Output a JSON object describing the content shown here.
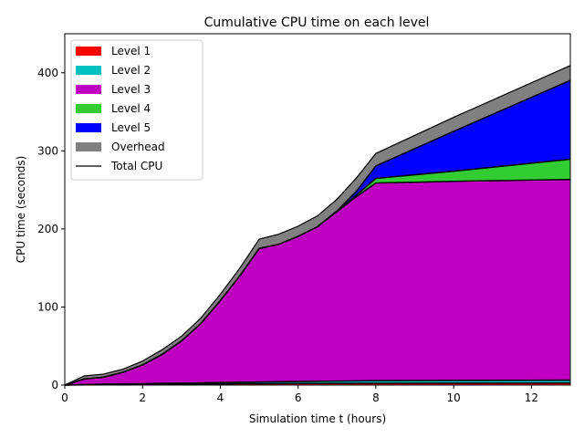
{
  "chart_data": {
    "type": "area",
    "title": "Cumulative CPU time on each level",
    "xlabel": "Simulation time t (hours)",
    "ylabel": "CPU time (seconds)",
    "xlim": [
      0,
      13
    ],
    "ylim": [
      0,
      450
    ],
    "x_ticks": [
      0,
      2,
      4,
      6,
      8,
      10,
      12
    ],
    "y_ticks": [
      0,
      100,
      200,
      300,
      400
    ],
    "grid": false,
    "legend_position": "top-left",
    "x": [
      0,
      0.5,
      1,
      1.5,
      2,
      2.5,
      3,
      3.5,
      4,
      4.5,
      5,
      5.5,
      6,
      6.5,
      7,
      7.5,
      8,
      10,
      13
    ],
    "series": [
      {
        "name": "Level 1",
        "color": "#ff0000",
        "values": [
          0,
          0.3,
          0.5,
          0.6,
          0.8,
          1.0,
          1.1,
          1.3,
          1.5,
          1.7,
          1.8,
          1.9,
          2.0,
          2.1,
          2.2,
          2.3,
          2.4,
          2.5,
          2.7
        ]
      },
      {
        "name": "Level 2",
        "color": "#00c0c0",
        "values": [
          0,
          0.4,
          0.6,
          0.8,
          1.0,
          1.2,
          1.4,
          1.6,
          1.8,
          2.0,
          2.2,
          2.3,
          2.5,
          2.7,
          2.9,
          3.1,
          3.3,
          3.5,
          3.6
        ]
      },
      {
        "name": "Level 3",
        "color": "#c000c0",
        "values": [
          0,
          7,
          9,
          15,
          24,
          37,
          54,
          76,
          105,
          136,
          171,
          176,
          186,
          198,
          217,
          236,
          253,
          255,
          257
        ]
      },
      {
        "name": "Level 4",
        "color": "#33cc33",
        "values": [
          0,
          0,
          0,
          0,
          0,
          0,
          0,
          0,
          0,
          0,
          0,
          0,
          0,
          0,
          1,
          2,
          6,
          13,
          26
        ]
      },
      {
        "name": "Level 5",
        "color": "#0000ff",
        "values": [
          0,
          0,
          0,
          0,
          0,
          0,
          0,
          0,
          0,
          0,
          0,
          0,
          0,
          0,
          0,
          5,
          16,
          51,
          101
        ]
      },
      {
        "name": "Overhead",
        "color": "#808080",
        "values": [
          0,
          4,
          4,
          4,
          5,
          6,
          6,
          7,
          8,
          10,
          12,
          13,
          13,
          14,
          15,
          17,
          16,
          18,
          19
        ]
      }
    ],
    "total_line": {
      "name": "Total CPU",
      "color": "#000000"
    }
  }
}
